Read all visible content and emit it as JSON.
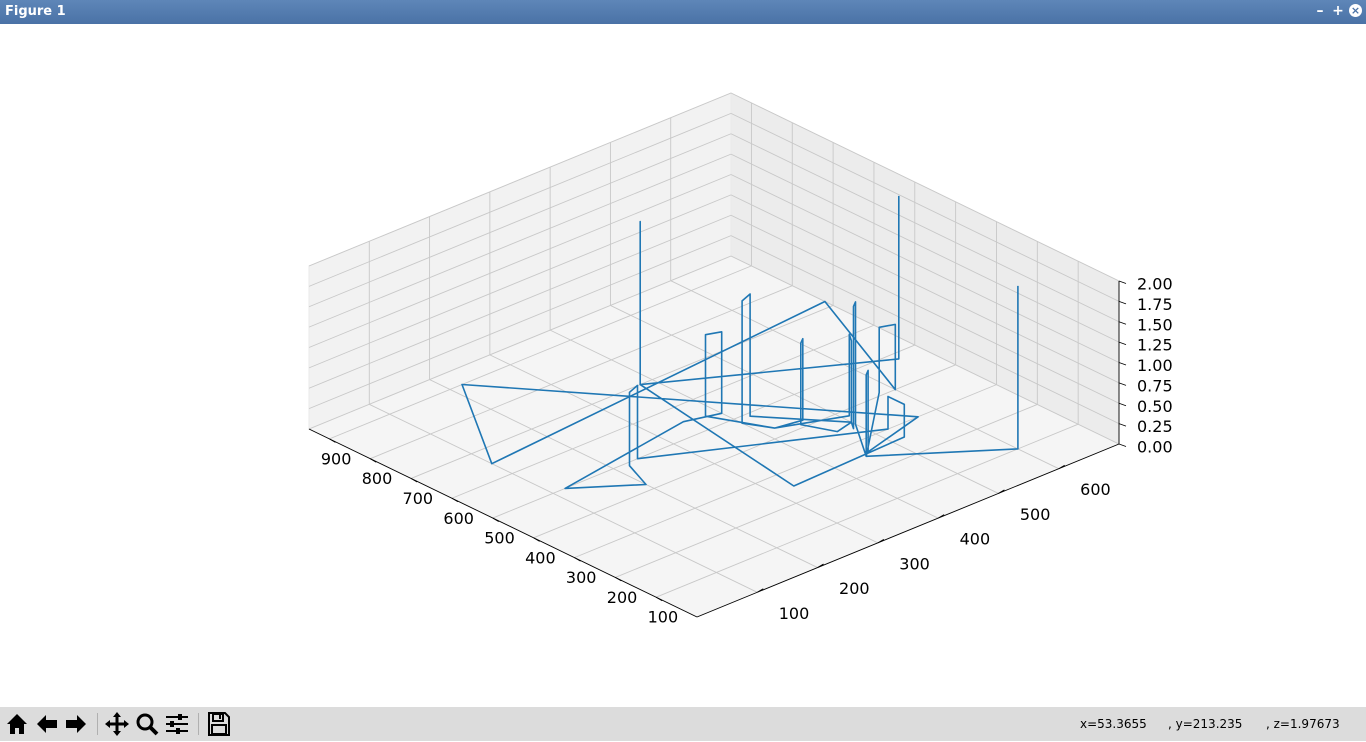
{
  "window": {
    "title": "Figure 1"
  },
  "window_controls": {
    "minimize": "–",
    "maximize": "+",
    "close": "×"
  },
  "toolbar": {
    "buttons": [
      {
        "name": "home-button",
        "icon": "home-icon"
      },
      {
        "name": "back-button",
        "icon": "arrow-left-icon"
      },
      {
        "name": "forward-button",
        "icon": "arrow-right-icon"
      },
      {
        "name": "pan-button",
        "icon": "move-icon"
      },
      {
        "name": "zoom-button",
        "icon": "magnifier-icon"
      },
      {
        "name": "configure-subplots-button",
        "icon": "sliders-icon"
      },
      {
        "name": "save-button",
        "icon": "floppy-disk-icon"
      }
    ],
    "coords": {
      "x": "x=53.3655",
      "y": ", y=213.235",
      "z": ", z=1.97673"
    }
  },
  "chart_data": {
    "type": "line",
    "projection": "3d",
    "grid": true,
    "line_color": "#1f77b4",
    "x_ticks": [
      "100",
      "200",
      "300",
      "400",
      "500",
      "600",
      "700",
      "800",
      "900"
    ],
    "y_ticks": [
      "100",
      "200",
      "300",
      "400",
      "500",
      "600"
    ],
    "z_ticks": [
      "0.00",
      "0.25",
      "0.50",
      "0.75",
      "1.00",
      "1.25",
      "1.50",
      "1.75",
      "2.00"
    ],
    "xlim": [
      0,
      950
    ],
    "ylim": [
      0,
      700
    ],
    "zlim": [
      0,
      2
    ],
    "series": [
      {
        "points": [
          [
            480,
            660,
            2.0
          ],
          [
            480,
            660,
            0.0
          ],
          [
            700,
            380,
            0.0
          ],
          [
            700,
            380,
            2.0
          ],
          [
            700,
            380,
            0.0
          ],
          [
            250,
            330,
            0.0
          ],
          [
            260,
            520,
            0.0
          ],
          [
            260,
            520,
            0.4
          ],
          [
            300,
            520,
            0.4
          ],
          [
            300,
            520,
            0.0
          ],
          [
            500,
            240,
            0.0
          ],
          [
            500,
            240,
            0.9
          ],
          [
            490,
            220,
            0.9
          ],
          [
            490,
            220,
            0.0
          ],
          [
            420,
            200,
            0.0
          ],
          [
            500,
            120,
            0.0
          ],
          [
            550,
            350,
            0.0
          ],
          [
            530,
            400,
            0.0
          ],
          [
            530,
            400,
            1.0
          ],
          [
            540,
            380,
            1.0
          ],
          [
            540,
            380,
            0.0
          ],
          [
            430,
            420,
            0.0
          ],
          [
            420,
            460,
            0.0
          ],
          [
            420,
            460,
            1.0
          ],
          [
            410,
            450,
            1.0
          ],
          [
            410,
            450,
            0.0
          ],
          [
            350,
            470,
            0.0
          ],
          [
            360,
            500,
            0.0
          ],
          [
            360,
            500,
            1.0
          ],
          [
            380,
            510,
            1.0
          ],
          [
            380,
            510,
            0.0
          ],
          [
            430,
            420,
            0.0
          ],
          [
            480,
            400,
            0.0
          ],
          [
            480,
            400,
            1.5
          ],
          [
            490,
            420,
            1.5
          ],
          [
            490,
            420,
            0.0
          ],
          [
            360,
            500,
            0.0
          ],
          [
            340,
            490,
            0.0
          ],
          [
            340,
            490,
            1.5
          ],
          [
            350,
            500,
            1.5
          ],
          [
            350,
            500,
            0.0
          ],
          [
            250,
            450,
            0.0
          ],
          [
            250,
            450,
            1.0
          ],
          [
            260,
            460,
            1.0
          ],
          [
            260,
            460,
            0.0
          ],
          [
            300,
            570,
            0.0
          ],
          [
            900,
            220,
            0.0
          ],
          [
            650,
            100,
            0.0
          ],
          [
            720,
            700,
            0.0
          ],
          [
            400,
            600,
            0.0
          ],
          [
            400,
            600,
            0.8
          ],
          [
            410,
            580,
            0.8
          ],
          [
            410,
            580,
            0.0
          ],
          [
            250,
            450,
            0.0
          ],
          [
            100,
            600,
            0.0
          ],
          [
            100,
            600,
            2.0
          ]
        ]
      }
    ]
  }
}
